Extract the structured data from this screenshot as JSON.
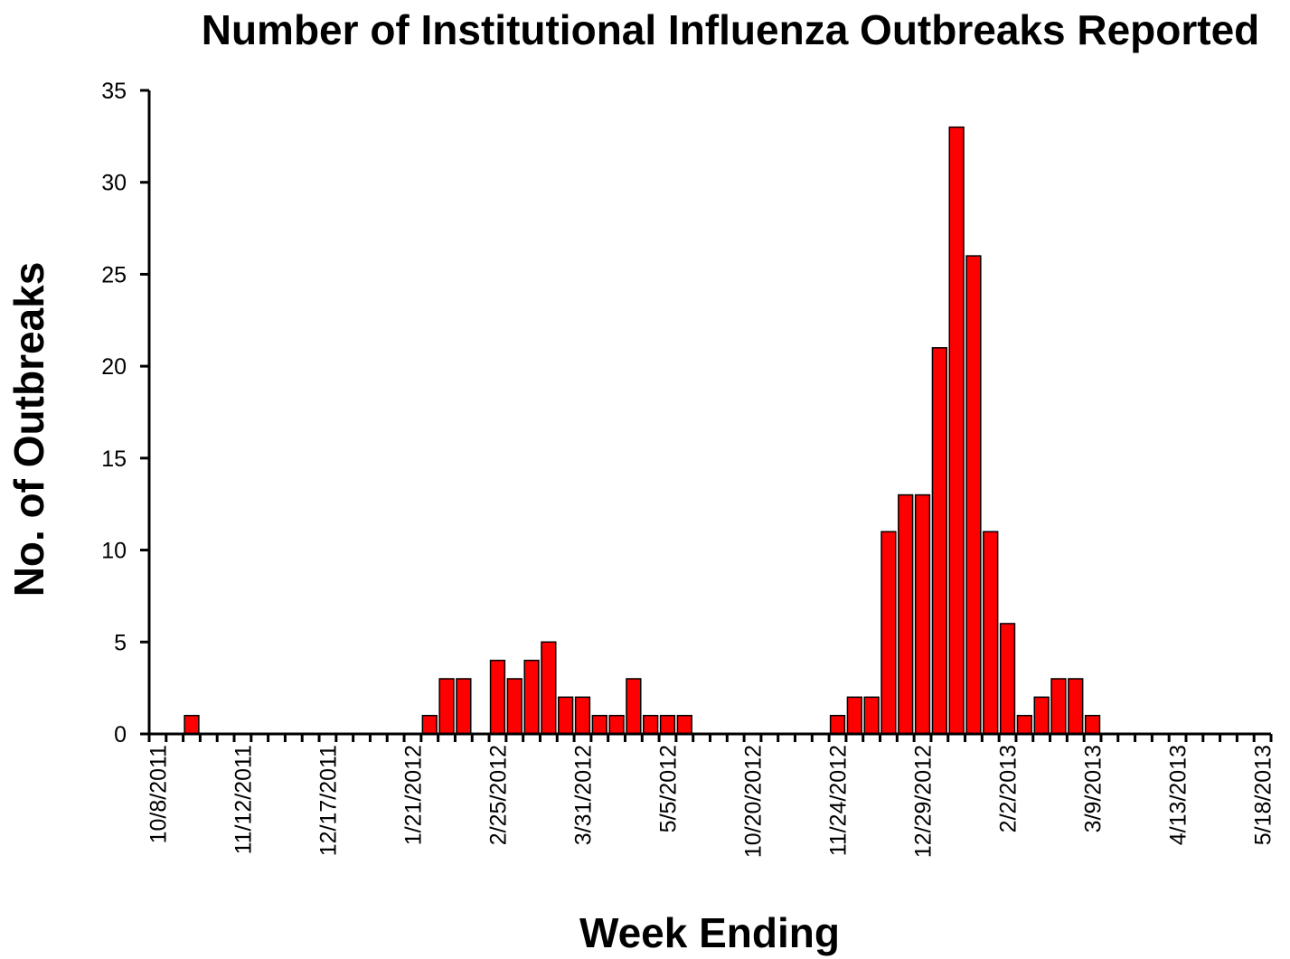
{
  "chart_data": {
    "type": "bar",
    "title": "Number of Institutional Influenza Outbreaks Reported",
    "x_label": "Week Ending",
    "y_label": "No. of Outbreaks",
    "categories": [
      "10/8/2011",
      null,
      null,
      null,
      null,
      "11/12/2011",
      null,
      null,
      null,
      null,
      "12/17/2011",
      null,
      null,
      null,
      null,
      "1/21/2012",
      null,
      null,
      null,
      null,
      "2/25/2012",
      null,
      null,
      null,
      null,
      "3/31/2012",
      null,
      null,
      null,
      null,
      "5/5/2012",
      null,
      null,
      null,
      null,
      "10/20/2012",
      null,
      null,
      null,
      null,
      "11/24/2012",
      null,
      null,
      null,
      null,
      "12/29/2012",
      null,
      null,
      null,
      null,
      "2/2/2013",
      null,
      null,
      null,
      null,
      "3/9/2013",
      null,
      null,
      null,
      null,
      "4/13/2013",
      null,
      null,
      null,
      null,
      "5/18/2013"
    ],
    "values": [
      0,
      0,
      1,
      0,
      0,
      0,
      0,
      0,
      0,
      0,
      0,
      0,
      0,
      0,
      0,
      0,
      1,
      3,
      3,
      0,
      4,
      3,
      4,
      5,
      2,
      2,
      1,
      1,
      3,
      1,
      1,
      1,
      0,
      0,
      0,
      0,
      0,
      0,
      0,
      0,
      1,
      2,
      2,
      11,
      13,
      13,
      21,
      33,
      26,
      11,
      6,
      1,
      2,
      3,
      3,
      1,
      0,
      0,
      0,
      0,
      0,
      0,
      0,
      0,
      0,
      0
    ],
    "color": "#ff0000",
    "ylim": [
      0,
      35
    ],
    "yticks": [
      0,
      5,
      10,
      15,
      20,
      25,
      30,
      35
    ],
    "grid": false
  }
}
